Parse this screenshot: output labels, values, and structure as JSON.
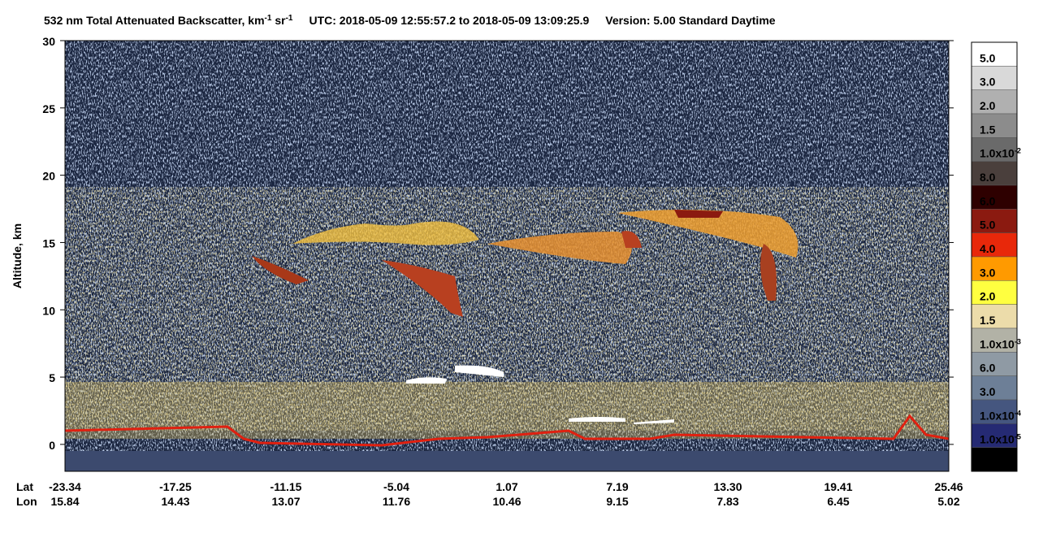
{
  "chart_data": {
    "type": "heatmap",
    "title_parts": [
      {
        "text": "532 nm Total Attenuated Backscatter, km"
      },
      {
        "sup": "-1"
      },
      {
        "text": " sr"
      },
      {
        "sup": "-1"
      },
      {
        "text": "UTC:  2018-05-09 12:55:57.2  to  2018-05-09 13:09:25.9"
      },
      {
        "text": "Version: 5.00  Standard  Daytime"
      }
    ],
    "y_label": "Altitude, km",
    "ylim": [
      -2,
      30
    ],
    "yticks": [
      0,
      5,
      10,
      15,
      20,
      25,
      30
    ],
    "x_rows": [
      {
        "title": "Lat",
        "labels": [
          "-23.34",
          "-17.25",
          "-11.15",
          "-5.04",
          "1.07",
          "7.19",
          "13.30",
          "19.41",
          "25.46"
        ]
      },
      {
        "title": "Lon",
        "labels": [
          "15.84",
          "14.43",
          "13.07",
          "11.76",
          "10.46",
          "9.15",
          "7.83",
          "6.45",
          "5.02"
        ]
      }
    ],
    "colorbar": [
      {
        "color": "#ffffff",
        "label": "5.0"
      },
      {
        "color": "#d9d9d9",
        "label": "3.0"
      },
      {
        "color": "#b0b0b0",
        "label": "2.0"
      },
      {
        "color": "#8c8c8c",
        "label": "1.5"
      },
      {
        "color": "#6a6a6a",
        "label": "1.0x10",
        "exp": "-2"
      },
      {
        "color": "#4a3f3c",
        "label": "8.0"
      },
      {
        "color": "#2e0000",
        "label": "6.0"
      },
      {
        "color": "#8b1a10",
        "label": "5.0"
      },
      {
        "color": "#e8280a",
        "label": "4.0"
      },
      {
        "color": "#ff9a00",
        "label": "3.0"
      },
      {
        "color": "#ffff40",
        "label": "2.0"
      },
      {
        "color": "#ecdcaa",
        "label": "1.5"
      },
      {
        "color": "#b2b2a6",
        "label": "1.0x10",
        "exp": "-3"
      },
      {
        "color": "#8f9aa4",
        "label": "6.0"
      },
      {
        "color": "#6d7f97",
        "label": "3.0"
      },
      {
        "color": "#45567f",
        "label": "1.0x10",
        "exp": "-4"
      },
      {
        "color": "#252a73",
        "label": "1.0x10",
        "exp": "-5"
      },
      {
        "color": "#000000"
      }
    ]
  }
}
